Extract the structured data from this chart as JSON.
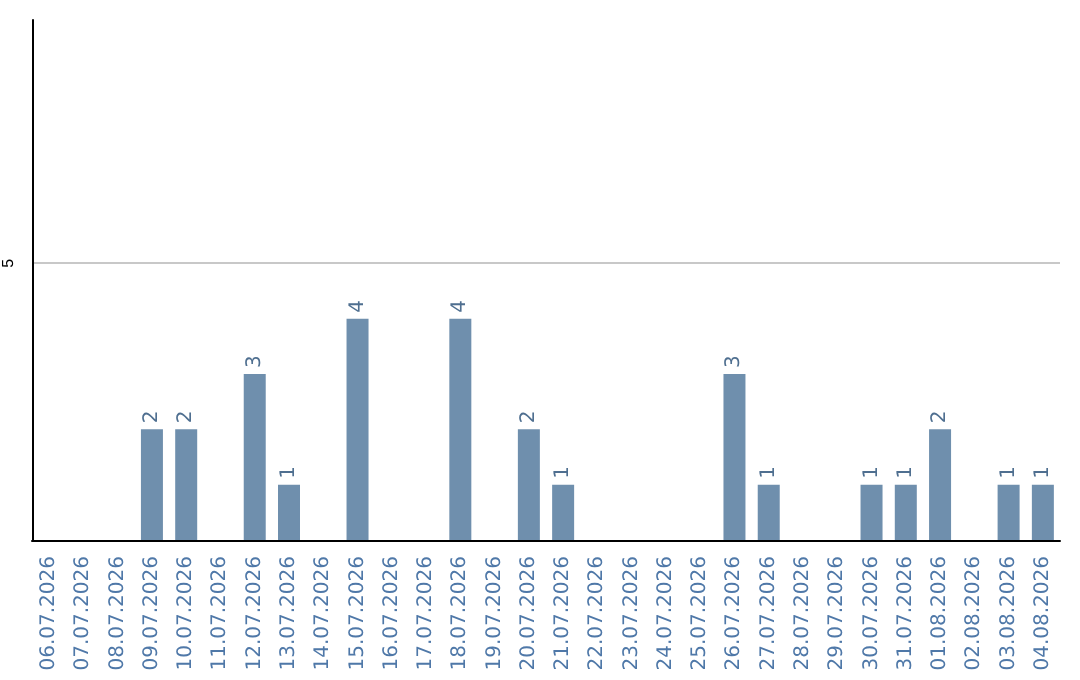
{
  "chart_data": {
    "type": "bar",
    "categories": [
      "06.07.2026",
      "07.07.2026",
      "08.07.2026",
      "09.07.2026",
      "10.07.2026",
      "11.07.2026",
      "12.07.2026",
      "13.07.2026",
      "14.07.2026",
      "15.07.2026",
      "16.07.2026",
      "17.07.2026",
      "18.07.2026",
      "19.07.2026",
      "20.07.2026",
      "21.07.2026",
      "22.07.2026",
      "23.07.2026",
      "24.07.2026",
      "25.07.2026",
      "26.07.2026",
      "27.07.2026",
      "28.07.2026",
      "29.07.2026",
      "30.07.2026",
      "31.07.2026",
      "01.08.2026",
      "02.08.2026",
      "03.08.2026",
      "04.08.2026"
    ],
    "values": [
      0,
      0,
      0,
      2,
      2,
      0,
      3,
      1,
      0,
      4,
      0,
      0,
      4,
      0,
      2,
      1,
      0,
      0,
      0,
      0,
      3,
      1,
      0,
      0,
      1,
      1,
      2,
      0,
      1,
      1
    ],
    "value_labels": [
      null,
      null,
      null,
      "2",
      "2",
      null,
      "3",
      "1",
      null,
      "4",
      null,
      null,
      "4",
      null,
      "2",
      "1",
      null,
      null,
      null,
      null,
      "3",
      "1",
      null,
      null,
      "1",
      "1",
      "2",
      null,
      "1",
      "1"
    ],
    "color": "#6f8fad",
    "ylim": [
      0,
      9.4
    ],
    "yticks": [
      5
    ],
    "grid": "y"
  }
}
